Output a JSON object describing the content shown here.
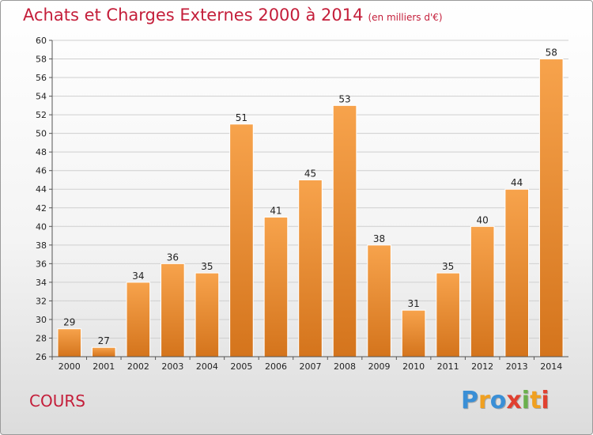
{
  "header": {
    "title": "Achats et Charges Externes 2000 à 2014",
    "subtitle": "(en milliers d'€)"
  },
  "footer": {
    "commune": "COURS",
    "logo_text": "Proxiti"
  },
  "colors": {
    "accent": "#c41e3a",
    "bar_top": "#f7a34c",
    "bar_bottom": "#d4741c",
    "grid": "#cfcfcf"
  },
  "chart_data": {
    "type": "bar",
    "title": "Achats et Charges Externes 2000 à 2014",
    "subtitle": "(en milliers d'€)",
    "xlabel": "",
    "ylabel": "",
    "categories": [
      "2000",
      "2001",
      "2002",
      "2003",
      "2004",
      "2005",
      "2006",
      "2007",
      "2008",
      "2009",
      "2010",
      "2011",
      "2012",
      "2013",
      "2014"
    ],
    "values": [
      29,
      27,
      34,
      36,
      35,
      51,
      41,
      45,
      53,
      38,
      31,
      35,
      40,
      44,
      58
    ],
    "ylim": [
      26,
      60
    ],
    "ytick_step": 2,
    "grid": true,
    "legend": "none"
  }
}
